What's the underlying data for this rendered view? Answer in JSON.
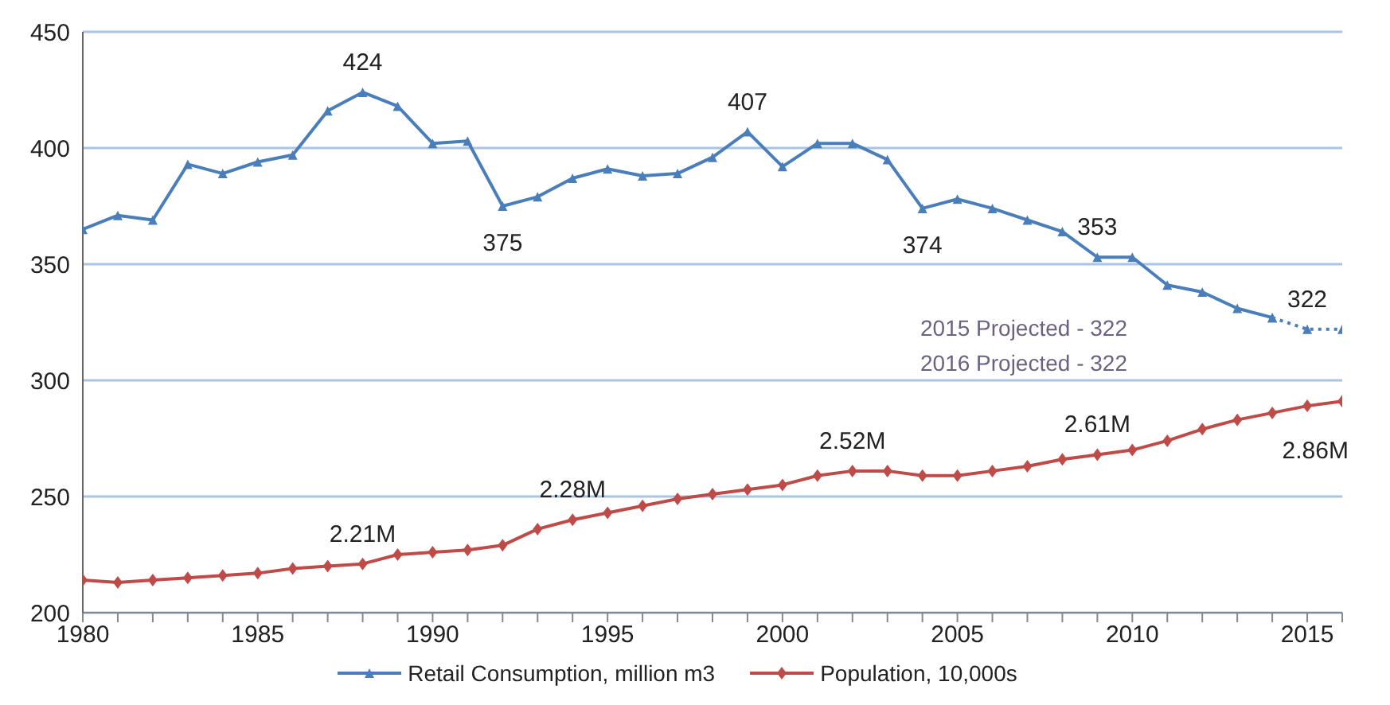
{
  "chart_data": {
    "type": "line",
    "xlim": [
      1980,
      2016
    ],
    "xticks": [
      1980,
      {
        "value": 1981,
        "label": null
      },
      {
        "value": 1982,
        "label": null
      },
      {
        "value": 1983,
        "label": null
      },
      {
        "value": 1984,
        "label": null
      },
      1985,
      {
        "value": 1986,
        "label": null
      },
      {
        "value": 1987,
        "label": null
      },
      {
        "value": 1988,
        "label": null
      },
      {
        "value": 1989,
        "label": null
      },
      1990,
      {
        "value": 1991,
        "label": null
      },
      {
        "value": 1992,
        "label": null
      },
      {
        "value": 1993,
        "label": null
      },
      {
        "value": 1994,
        "label": null
      },
      1995,
      {
        "value": 1996,
        "label": null
      },
      {
        "value": 1997,
        "label": null
      },
      {
        "value": 1998,
        "label": null
      },
      {
        "value": 1999,
        "label": null
      },
      2000,
      {
        "value": 2001,
        "label": null
      },
      {
        "value": 2002,
        "label": null
      },
      {
        "value": 2003,
        "label": null
      },
      {
        "value": 2004,
        "label": null
      },
      2005,
      {
        "value": 2006,
        "label": null
      },
      {
        "value": 2007,
        "label": null
      },
      {
        "value": 2008,
        "label": null
      },
      {
        "value": 2009,
        "label": null
      },
      2010,
      {
        "value": 2011,
        "label": null
      },
      {
        "value": 2012,
        "label": null
      },
      {
        "value": 2013,
        "label": null
      },
      {
        "value": 2014,
        "label": null
      },
      2015,
      {
        "value": 2016,
        "label": null
      }
    ],
    "ylim": [
      200,
      450
    ],
    "yticks": [
      200,
      250,
      300,
      350,
      400,
      450
    ],
    "grid": "y",
    "legend": "bottom",
    "series": [
      {
        "name": "Retail Consumption, million m3",
        "color": "#4a7ebb",
        "marker": "triangle",
        "line_style": "solid",
        "x": [
          1980,
          1981,
          1982,
          1983,
          1984,
          1985,
          1986,
          1987,
          1988,
          1989,
          1990,
          1991,
          1992,
          1993,
          1994,
          1995,
          1996,
          1997,
          1998,
          1999,
          2000,
          2001,
          2002,
          2003,
          2004,
          2005,
          2006,
          2007,
          2008,
          2009,
          2010,
          2011,
          2012,
          2013,
          2014
        ],
        "values": [
          365,
          371,
          369,
          393,
          389,
          394,
          397,
          416,
          424,
          418,
          402,
          403,
          375,
          379,
          387,
          391,
          388,
          389,
          396,
          407,
          392,
          402,
          402,
          395,
          374,
          378,
          374,
          369,
          364,
          353,
          353,
          341,
          338,
          331,
          327
        ],
        "value_labels": [
          null,
          null,
          null,
          null,
          null,
          null,
          null,
          null,
          "424",
          null,
          null,
          null,
          "375",
          null,
          null,
          null,
          null,
          null,
          null,
          "407",
          null,
          null,
          null,
          null,
          "374",
          null,
          null,
          null,
          null,
          "353",
          null,
          null,
          null,
          null,
          null
        ]
      },
      {
        "color": "#4a7ebb",
        "marker": "triangle",
        "line_style": "dotted",
        "x": [
          2014,
          2015,
          2016
        ],
        "values": [
          327,
          322,
          322
        ],
        "value_labels": [
          null,
          "322",
          null
        ]
      },
      {
        "name": "Population, 10,000s",
        "color": "#be4b48",
        "marker": "diamond",
        "line_style": "solid",
        "x": [
          1980,
          1981,
          1982,
          1983,
          1984,
          1985,
          1986,
          1987,
          1988,
          1989,
          1990,
          1991,
          1992,
          1993,
          1994,
          1995,
          1996,
          1997,
          1998,
          1999,
          2000,
          2001,
          2002,
          2003,
          2004,
          2005,
          2006,
          2007,
          2008,
          2009,
          2010,
          2011,
          2012,
          2013,
          2014,
          2015,
          2016
        ],
        "values": [
          214,
          213,
          214,
          215,
          216,
          217,
          219,
          220,
          221,
          225,
          226,
          227,
          229,
          236,
          240,
          243,
          246,
          249,
          251,
          253,
          255,
          259,
          261,
          261,
          259,
          259,
          261,
          263,
          266,
          268,
          270,
          274,
          279,
          283,
          286,
          289,
          291
        ]
      }
    ],
    "annotations": [
      "2015 Projected - 322",
      "2016 Projected - 322",
      {
        "text": "2.21M",
        "x": 1988,
        "y": 221
      },
      {
        "text": "2.28M",
        "x": 1994,
        "y": 240
      },
      {
        "text": "2.52M",
        "x": 2002,
        "y": 261
      },
      {
        "text": "2.61M",
        "x": 2009,
        "y": 268
      },
      {
        "text": "2.86M",
        "x": 2016,
        "y": 291
      }
    ]
  }
}
